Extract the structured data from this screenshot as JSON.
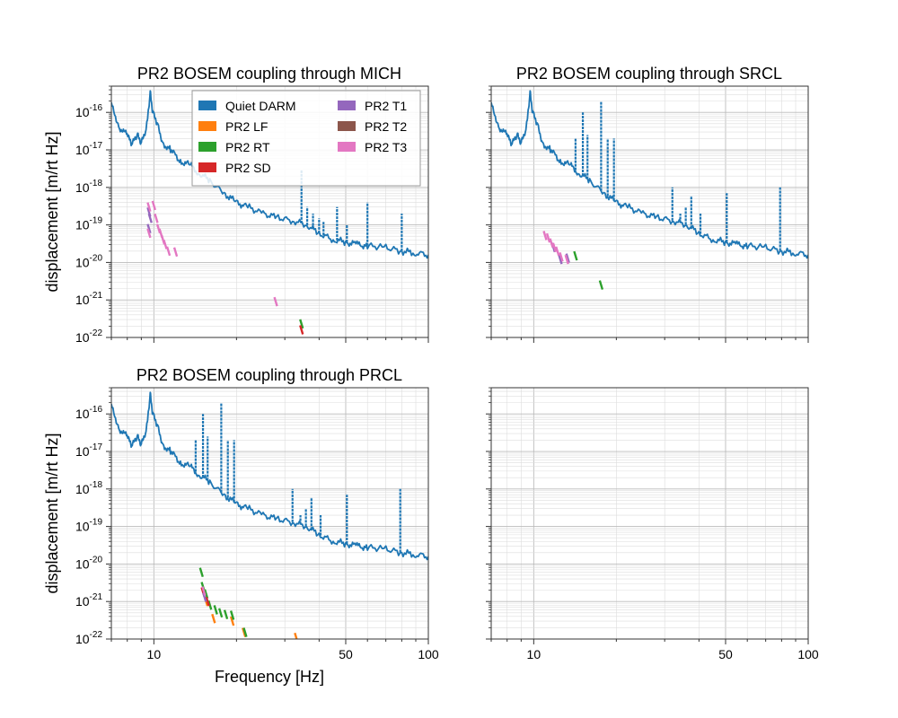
{
  "chart_data": [
    {
      "type": "line",
      "title": "PR2 BOSEM coupling through MICH",
      "xlabel": "",
      "ylabel": "displacement [m/rt Hz]",
      "xscale": "log",
      "yscale": "log",
      "xlim": [
        7,
        100
      ],
      "ylim": [
        1e-22,
        5e-16
      ],
      "x_tick_labels": [
        "10",
        "50",
        "100"
      ],
      "y_tick_labels": [
        "10^-22",
        "10^-21",
        "10^-20",
        "10^-19",
        "10^-18",
        "10^-17",
        "10^-16"
      ],
      "grid": true,
      "legend": {
        "placement": "top-center",
        "columns": 2,
        "entries": [
          "Quiet DARM",
          "PR2 LF",
          "PR2 RT",
          "PR2 SD",
          "PR2 T1",
          "PR2 T2",
          "PR2 T3"
        ]
      },
      "series": [
        {
          "name": "Quiet DARM",
          "color": "#1f77b4",
          "style": "line",
          "x": [
            7,
            7.5,
            8,
            8.3,
            8.7,
            9,
            9.4,
            9.7,
            9.9,
            10.3,
            10.8,
            11.5,
            12.5,
            13.5,
            14.5,
            16,
            18,
            20,
            22,
            25,
            28,
            32,
            36,
            40,
            45,
            50,
            55,
            60,
            70,
            80,
            90,
            100
          ],
          "y": [
            1.6e-16,
            4e-17,
            2.4e-17,
            1.3e-17,
            2.5e-17,
            1.5e-17,
            4e-17,
            3.5e-16,
            1e-16,
            5e-17,
            1.5e-17,
            1e-17,
            5e-18,
            4e-18,
            2.5e-18,
            1.5e-18,
            7e-19,
            4e-19,
            3e-19,
            2e-19,
            1.6e-19,
            1.3e-19,
            1e-19,
            6e-20,
            4e-20,
            3.5e-20,
            3e-20,
            2.8e-20,
            2.5e-20,
            2e-20,
            1.8e-20,
            1.6e-20
          ],
          "peaks": [
            {
              "x": 34.5,
              "y": 3e-18
            },
            {
              "x": 36.2,
              "y": 3e-19
            },
            {
              "x": 38,
              "y": 2e-19
            },
            {
              "x": 40,
              "y": 1.5e-19
            },
            {
              "x": 41.5,
              "y": 1.2e-19
            },
            {
              "x": 46.5,
              "y": 3e-19
            },
            {
              "x": 50.5,
              "y": 1e-19
            },
            {
              "x": 60,
              "y": 4e-19
            },
            {
              "x": 80,
              "y": 2e-19
            }
          ]
        },
        {
          "name": "PR2 RT",
          "color": "#2ca02c",
          "style": "segments",
          "points": [
            {
              "x": 34.5,
              "y": 2.3e-22
            }
          ]
        },
        {
          "name": "PR2 SD",
          "color": "#d62728",
          "style": "segments",
          "points": [
            {
              "x": 34.5,
              "y": 1.6e-22
            }
          ]
        },
        {
          "name": "PR2 T1",
          "color": "#9467bd",
          "style": "segments",
          "points": [
            {
              "x": 9.6,
              "y": 2.2e-19
            },
            {
              "x": 9.7,
              "y": 1.5e-19
            },
            {
              "x": 9.6,
              "y": 8e-20
            }
          ]
        },
        {
          "name": "PR2 T3",
          "color": "#e377c2",
          "style": "segments",
          "points": [
            {
              "x": 9.6,
              "y": 3e-19
            },
            {
              "x": 9.6,
              "y": 6e-20
            },
            {
              "x": 10,
              "y": 3.3e-19
            },
            {
              "x": 10.2,
              "y": 1.5e-19
            },
            {
              "x": 10.4,
              "y": 8e-20
            },
            {
              "x": 10.6,
              "y": 6e-20
            },
            {
              "x": 10.8,
              "y": 4e-20
            },
            {
              "x": 11,
              "y": 3e-20
            },
            {
              "x": 11.3,
              "y": 2e-20
            },
            {
              "x": 12,
              "y": 1.9e-20
            },
            {
              "x": 27.8,
              "y": 9e-22
            }
          ]
        }
      ]
    },
    {
      "type": "line",
      "title": "PR2 BOSEM coupling through SRCL",
      "xlabel": "",
      "ylabel": "",
      "xscale": "log",
      "yscale": "log",
      "xlim": [
        7,
        100
      ],
      "ylim": [
        1e-22,
        5e-16
      ],
      "grid": true,
      "series": [
        {
          "name": "Quiet DARM",
          "color": "#1f77b4",
          "style": "line",
          "x": [
            7,
            7.5,
            8,
            8.3,
            8.7,
            9,
            9.4,
            9.7,
            9.9,
            10.3,
            10.8,
            11.5,
            12.5,
            13.5,
            14.5,
            16,
            18,
            20,
            22,
            25,
            28,
            32,
            36,
            40,
            45,
            50,
            55,
            60,
            70,
            80,
            90,
            100
          ],
          "y": [
            1.6e-16,
            4e-17,
            2.4e-17,
            1.3e-17,
            2.5e-17,
            1.5e-17,
            4e-17,
            3.5e-16,
            1e-16,
            5e-17,
            1.5e-17,
            1e-17,
            5e-18,
            4e-18,
            2.5e-18,
            1.5e-18,
            7e-19,
            4e-19,
            3e-19,
            2e-19,
            1.6e-19,
            1.3e-19,
            1e-19,
            6e-20,
            4e-20,
            3.5e-20,
            3e-20,
            2.8e-20,
            2.5e-20,
            2e-20,
            1.8e-20,
            1.6e-20
          ],
          "peaks": [
            {
              "x": 14.2,
              "y": 2e-17
            },
            {
              "x": 15.1,
              "y": 1e-16
            },
            {
              "x": 15.7,
              "y": 2.5e-17
            },
            {
              "x": 17.6,
              "y": 2e-16
            },
            {
              "x": 18.6,
              "y": 2e-17
            },
            {
              "x": 19.6,
              "y": 2e-17
            },
            {
              "x": 32,
              "y": 1e-18
            },
            {
              "x": 34.2,
              "y": 2e-19
            },
            {
              "x": 35.8,
              "y": 3e-19
            },
            {
              "x": 37.5,
              "y": 6e-19
            },
            {
              "x": 40.5,
              "y": 2e-19
            },
            {
              "x": 50.5,
              "y": 7e-19
            },
            {
              "x": 79,
              "y": 1e-18
            }
          ]
        },
        {
          "name": "PR2 RT",
          "color": "#2ca02c",
          "style": "segments",
          "points": [
            {
              "x": 14.2,
              "y": 1.5e-20
            },
            {
              "x": 17.6,
              "y": 2.5e-21
            }
          ]
        },
        {
          "name": "PR2 T1",
          "color": "#9467bd",
          "style": "segments",
          "points": [
            {
              "x": 11.8,
              "y": 2.5e-20
            },
            {
              "x": 12.5,
              "y": 1.2e-20
            },
            {
              "x": 13.3,
              "y": 1.3e-20
            }
          ]
        },
        {
          "name": "PR2 T3",
          "color": "#e377c2",
          "style": "segments",
          "points": [
            {
              "x": 11.0,
              "y": 5.2e-20
            },
            {
              "x": 11.3,
              "y": 4.5e-20
            },
            {
              "x": 11.6,
              "y": 3.3e-20
            },
            {
              "x": 11.9,
              "y": 2.5e-20
            },
            {
              "x": 12.2,
              "y": 2e-20
            },
            {
              "x": 12.6,
              "y": 1.4e-20
            },
            {
              "x": 13.2,
              "y": 1.2e-20
            }
          ]
        }
      ]
    },
    {
      "type": "line",
      "title": "PR2 BOSEM coupling through PRCL",
      "xlabel": "Frequency [Hz]",
      "ylabel": "displacement [m/rt Hz]",
      "xscale": "log",
      "yscale": "log",
      "xlim": [
        7,
        100
      ],
      "ylim": [
        1e-22,
        5e-16
      ],
      "x_tick_labels": [
        "10",
        "50",
        "100"
      ],
      "y_tick_labels": [
        "10^-22",
        "10^-21",
        "10^-20",
        "10^-19",
        "10^-18",
        "10^-17",
        "10^-16"
      ],
      "grid": true,
      "series": [
        {
          "name": "Quiet DARM",
          "color": "#1f77b4",
          "style": "line",
          "x": [
            7,
            7.5,
            8,
            8.3,
            8.7,
            9,
            9.4,
            9.7,
            9.9,
            10.3,
            10.8,
            11.5,
            12.5,
            13.5,
            14.5,
            16,
            18,
            20,
            22,
            25,
            28,
            32,
            36,
            40,
            45,
            50,
            55,
            60,
            70,
            80,
            90,
            100
          ],
          "y": [
            1.6e-16,
            4e-17,
            2.4e-17,
            1.3e-17,
            2.5e-17,
            1.5e-17,
            4e-17,
            3.5e-16,
            1e-16,
            5e-17,
            1.5e-17,
            1e-17,
            5e-18,
            4e-18,
            2.5e-18,
            1.5e-18,
            7e-19,
            4e-19,
            3e-19,
            2e-19,
            1.6e-19,
            1.3e-19,
            1e-19,
            6e-20,
            4e-20,
            3.5e-20,
            3e-20,
            2.8e-20,
            2.5e-20,
            2e-20,
            1.8e-20,
            1.6e-20
          ],
          "peaks": [
            {
              "x": 14.2,
              "y": 2e-17
            },
            {
              "x": 15.1,
              "y": 1e-16
            },
            {
              "x": 15.7,
              "y": 2.5e-17
            },
            {
              "x": 17.6,
              "y": 2e-16
            },
            {
              "x": 18.6,
              "y": 2e-17
            },
            {
              "x": 19.6,
              "y": 2e-17
            },
            {
              "x": 32,
              "y": 1e-18
            },
            {
              "x": 34.2,
              "y": 2e-19
            },
            {
              "x": 35.8,
              "y": 3e-19
            },
            {
              "x": 37.5,
              "y": 6e-19
            },
            {
              "x": 40.5,
              "y": 2e-19
            },
            {
              "x": 50.5,
              "y": 7e-19
            },
            {
              "x": 79,
              "y": 1e-18
            }
          ]
        },
        {
          "name": "PR2 LF",
          "color": "#ff7f0e",
          "style": "segments",
          "points": [
            {
              "x": 15.5,
              "y": 1e-21
            },
            {
              "x": 16.5,
              "y": 3.5e-22
            },
            {
              "x": 19.3,
              "y": 3e-22
            },
            {
              "x": 21.3,
              "y": 1.5e-22
            },
            {
              "x": 33,
              "y": 1.1e-22
            }
          ]
        },
        {
          "name": "PR2 RT",
          "color": "#2ca02c",
          "style": "segments",
          "points": [
            {
              "x": 14.9,
              "y": 6e-21
            },
            {
              "x": 15.1,
              "y": 2.5e-21
            },
            {
              "x": 15.5,
              "y": 1.6e-21
            },
            {
              "x": 16,
              "y": 8e-22
            },
            {
              "x": 16.8,
              "y": 6e-22
            },
            {
              "x": 17.5,
              "y": 5e-22
            },
            {
              "x": 18.3,
              "y": 4.5e-22
            },
            {
              "x": 19.3,
              "y": 4.3e-22
            },
            {
              "x": 21.5,
              "y": 1.5e-22
            }
          ]
        },
        {
          "name": "PR2 SD",
          "color": "#d62728",
          "style": "segments",
          "points": [
            {
              "x": 15.1,
              "y": 1.8e-21
            },
            {
              "x": 15.7,
              "y": 1e-21
            }
          ]
        },
        {
          "name": "PR2 T1",
          "color": "#9467bd",
          "style": "segments",
          "points": [
            {
              "x": 15.3,
              "y": 1.3e-21
            }
          ]
        },
        {
          "name": "PR2 T3",
          "color": "#e377c2",
          "style": "segments",
          "points": [
            {
              "x": 15.2,
              "y": 1.9e-21
            }
          ]
        }
      ]
    },
    {
      "type": "line",
      "title": "",
      "xlabel": "",
      "ylabel": "",
      "xscale": "log",
      "yscale": "log",
      "xlim": [
        7,
        100
      ],
      "ylim": [
        1e-22,
        5e-16
      ],
      "x_tick_labels": [
        "10",
        "50",
        "100"
      ],
      "grid": true,
      "series": []
    }
  ]
}
